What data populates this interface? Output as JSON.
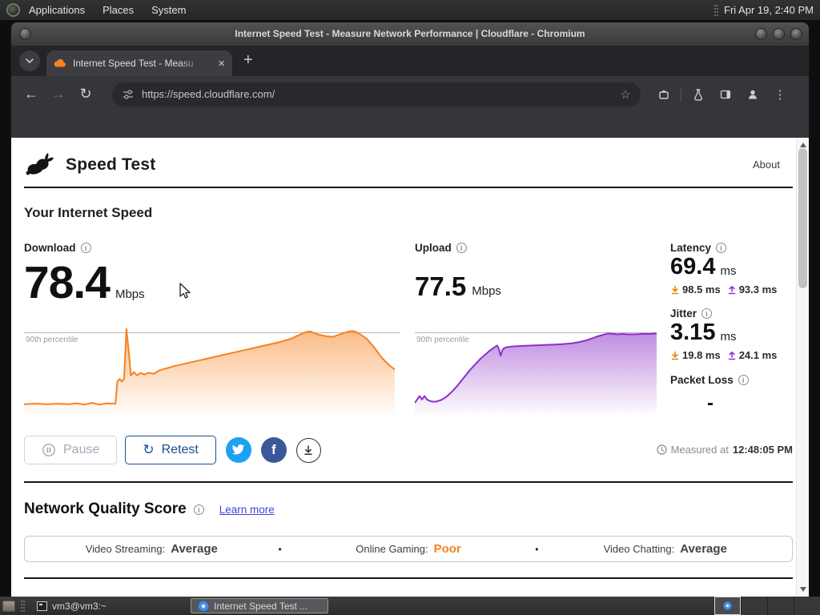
{
  "desktop": {
    "menu_bar": {
      "menus": [
        "Applications",
        "Places",
        "System"
      ],
      "clock": "Fri Apr 19, 2:40 PM"
    },
    "taskbar": {
      "terminal_item": "vm3@vm3:~",
      "browser_item": "Internet Speed Test ...",
      "workspace_count": 4
    }
  },
  "browser": {
    "window_title": "Internet Speed Test - Measure Network Performance | Cloudflare - Chromium",
    "tab_title": "Internet Speed Test - Measu",
    "url": "https://speed.cloudflare.com/"
  },
  "page": {
    "brand_title": "Speed Test",
    "about_link": "About",
    "section_title": "Your Internet Speed",
    "metrics": {
      "download": {
        "label": "Download",
        "value": "78.4",
        "unit": "Mbps"
      },
      "upload": {
        "label": "Upload",
        "value": "77.5",
        "unit": "Mbps"
      },
      "latency": {
        "label": "Latency",
        "value": "69.4",
        "unit": "ms",
        "down": "98.5 ms",
        "up": "93.3 ms"
      },
      "jitter": {
        "label": "Jitter",
        "value": "3.15",
        "unit": "ms",
        "down": "19.8 ms",
        "up": "24.1 ms"
      },
      "packet_loss": {
        "label": "Packet Loss",
        "value": "-"
      }
    },
    "controls": {
      "pause": "Pause",
      "retest": "Retest"
    },
    "measured": {
      "prefix": "Measured at",
      "time": "12:48:05 PM"
    },
    "quality": {
      "title": "Network Quality Score",
      "learn_more": "Learn more",
      "items": [
        {
          "label": "Video Streaming:",
          "value": "Average",
          "color": "#3f4247"
        },
        {
          "label": "Online Gaming:",
          "value": "Poor",
          "color": "#f6821f"
        },
        {
          "label": "Video Chatting:",
          "value": "Average",
          "color": "#3f4247"
        }
      ]
    }
  },
  "chart_data": [
    {
      "type": "area",
      "name": "download-speed-over-time",
      "color": "#f6821f",
      "percentile_label": "90th percentile",
      "percentile_y": 95,
      "y_range": [
        0,
        100
      ],
      "points": [
        [
          0,
          11.5
        ],
        [
          3,
          12
        ],
        [
          6,
          11.5
        ],
        [
          9,
          12
        ],
        [
          12,
          11.5
        ],
        [
          14,
          12.5
        ],
        [
          16,
          11
        ],
        [
          18,
          13
        ],
        [
          20,
          11
        ],
        [
          22,
          12.5
        ],
        [
          23.5,
          12
        ],
        [
          24.3,
          12
        ],
        [
          24.8,
          38
        ],
        [
          25.4,
          41
        ],
        [
          26,
          38
        ],
        [
          26.6,
          41
        ],
        [
          27.2,
          99.5
        ],
        [
          27.8,
          74
        ],
        [
          28.4,
          45
        ],
        [
          29.2,
          49
        ],
        [
          30,
          45
        ],
        [
          31,
          48
        ],
        [
          32,
          46
        ],
        [
          33,
          48
        ],
        [
          34.5,
          47
        ],
        [
          36,
          51
        ],
        [
          40,
          56
        ],
        [
          44,
          60
        ],
        [
          48,
          64
        ],
        [
          52,
          68
        ],
        [
          56,
          72
        ],
        [
          60,
          76
        ],
        [
          64,
          80
        ],
        [
          68,
          84
        ],
        [
          71,
          88
        ],
        [
          73,
          92
        ],
        [
          74.5,
          95
        ],
        [
          76,
          96.5
        ],
        [
          78,
          93
        ],
        [
          80,
          91
        ],
        [
          82,
          90
        ],
        [
          84,
          93
        ],
        [
          86,
          96
        ],
        [
          87.5,
          97
        ],
        [
          89,
          94
        ],
        [
          91,
          88
        ],
        [
          93,
          78
        ],
        [
          95,
          66
        ],
        [
          97,
          57
        ],
        [
          98.5,
          52
        ]
      ]
    },
    {
      "type": "area",
      "name": "upload-speed-over-time",
      "color": "#8c30c8",
      "percentile_label": "90th percentile",
      "percentile_y": 95,
      "y_range": [
        0,
        100
      ],
      "points": [
        [
          0,
          13
        ],
        [
          1,
          17
        ],
        [
          2,
          21
        ],
        [
          3,
          17
        ],
        [
          4,
          21
        ],
        [
          5,
          17
        ],
        [
          6,
          15.5
        ],
        [
          7,
          14.5
        ],
        [
          9,
          14.5
        ],
        [
          11,
          16.5
        ],
        [
          13,
          20
        ],
        [
          15,
          25
        ],
        [
          17,
          31
        ],
        [
          19,
          38
        ],
        [
          21,
          45
        ],
        [
          23,
          52
        ],
        [
          25,
          58
        ],
        [
          27,
          64
        ],
        [
          29,
          69
        ],
        [
          31,
          74
        ],
        [
          33,
          78
        ],
        [
          34,
          80
        ],
        [
          34.8,
          76
        ],
        [
          35.5,
          68
        ],
        [
          36.3,
          75
        ],
        [
          37,
          77
        ],
        [
          38,
          78
        ],
        [
          41,
          79
        ],
        [
          45,
          79.5
        ],
        [
          49,
          80
        ],
        [
          53,
          80.5
        ],
        [
          57,
          81
        ],
        [
          61,
          81.5
        ],
        [
          65,
          82.5
        ],
        [
          68,
          84
        ],
        [
          71,
          86
        ],
        [
          74,
          89
        ],
        [
          76,
          91
        ],
        [
          78,
          92.5
        ],
        [
          80,
          94
        ],
        [
          82,
          93.5
        ],
        [
          84,
          93
        ],
        [
          86,
          93.5
        ],
        [
          88,
          93
        ],
        [
          91,
          93
        ],
        [
          94,
          93.5
        ],
        [
          97,
          93.5
        ],
        [
          100,
          94
        ]
      ]
    }
  ],
  "colors": {
    "accent_orange": "#f6821f",
    "accent_purple": "#8c30c8",
    "retest_blue": "#1b4f8e",
    "twitter_blue": "#1da1f2",
    "facebook_blue": "#3b5998"
  }
}
